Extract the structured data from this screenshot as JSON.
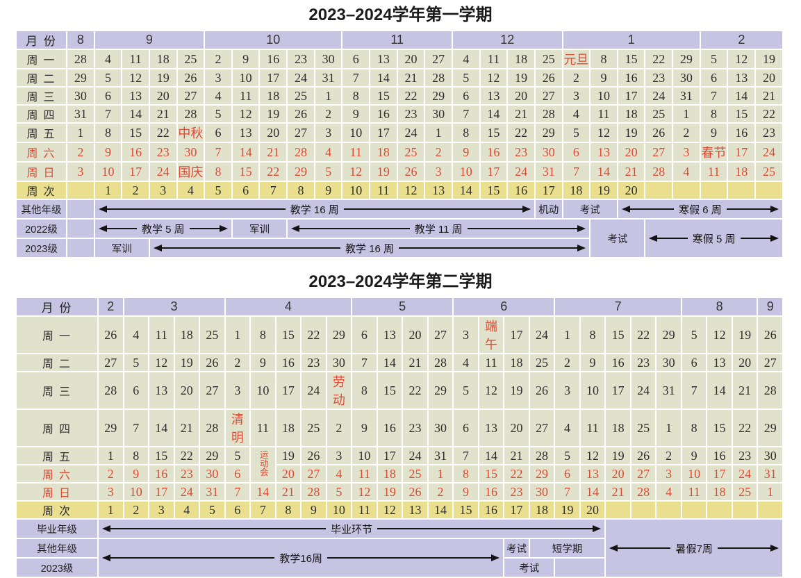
{
  "colors": {
    "band": "#c7c3e3",
    "cell": "#e1e2cc",
    "week": "#eadf8e",
    "red": "#dd4a33",
    "text": "#2e2e2e",
    "line": "#141414",
    "border": "#ffffff"
  },
  "semesters": [
    {
      "title": "2023–2024学年第一学期",
      "month_label": "月 份",
      "week_label": "周 次",
      "months": [
        {
          "label": "8",
          "span": 1
        },
        {
          "label": "9",
          "span": 4
        },
        {
          "label": "10",
          "span": 5
        },
        {
          "label": "11",
          "span": 4
        },
        {
          "label": "12",
          "span": 4
        },
        {
          "label": "1",
          "span": 5
        },
        {
          "label": "2",
          "span": 3
        }
      ],
      "day_rows": [
        {
          "label": "周 一",
          "red": false,
          "cells": [
            "28",
            "4",
            "11",
            "18",
            "25",
            "2",
            "9",
            "16",
            "23",
            "30",
            "6",
            "13",
            "20",
            "27",
            "4",
            "11",
            "18",
            "25",
            {
              "t": "元旦",
              "red": true
            },
            "8",
            "15",
            "22",
            "29",
            "5",
            "12",
            "19"
          ]
        },
        {
          "label": "周 二",
          "red": false,
          "cells": [
            "29",
            "5",
            "12",
            "19",
            "26",
            "3",
            "10",
            "17",
            "24",
            "31",
            "7",
            "14",
            "21",
            "28",
            "5",
            "12",
            "19",
            "26",
            "2",
            "9",
            "16",
            "23",
            "30",
            "6",
            "13",
            "20"
          ]
        },
        {
          "label": "周 三",
          "red": false,
          "cells": [
            "30",
            "6",
            "13",
            "20",
            "27",
            "4",
            "11",
            "18",
            "25",
            "1",
            "8",
            "15",
            "22",
            "29",
            "6",
            "13",
            "20",
            "27",
            "3",
            "10",
            "17",
            "24",
            "31",
            "7",
            "14",
            "21"
          ]
        },
        {
          "label": "周 四",
          "red": false,
          "cells": [
            "31",
            "7",
            "14",
            "21",
            "28",
            "5",
            "12",
            "19",
            "26",
            "2",
            "9",
            "16",
            "23",
            "30",
            "7",
            "14",
            "21",
            "28",
            "4",
            "11",
            "18",
            "25",
            "1",
            "8",
            "15",
            "22"
          ]
        },
        {
          "label": "周 五",
          "red": false,
          "cells": [
            "1",
            "8",
            "15",
            "22",
            {
              "t": "中秋",
              "red": true
            },
            "6",
            "13",
            "20",
            "27",
            "3",
            "10",
            "17",
            "24",
            "1",
            "8",
            "15",
            "22",
            "29",
            "5",
            "12",
            "19",
            "26",
            "2",
            "9",
            "16",
            "23"
          ]
        },
        {
          "label": "周 六",
          "red": true,
          "cells": [
            "2",
            "9",
            "16",
            "23",
            "30",
            "7",
            "14",
            "21",
            "28",
            "4",
            "11",
            "18",
            "25",
            "2",
            "9",
            "16",
            "23",
            "30",
            "6",
            "13",
            "20",
            "27",
            "3",
            {
              "t": "春节",
              "red": true
            },
            "17",
            "24"
          ]
        },
        {
          "label": "周 日",
          "red": true,
          "cells": [
            "3",
            "10",
            "17",
            "24",
            {
              "t": "国庆",
              "red": true
            },
            "8",
            "15",
            "22",
            "29",
            "5",
            "12",
            "19",
            "26",
            "3",
            "10",
            "17",
            "24",
            "31",
            "7",
            "14",
            "21",
            "28",
            "4",
            "11",
            "18",
            "25"
          ]
        }
      ],
      "week_cells": [
        "",
        "1",
        "2",
        "3",
        "4",
        "5",
        "6",
        "7",
        "8",
        "9",
        "10",
        "11",
        "12",
        "13",
        "14",
        "15",
        "16",
        "17",
        "18",
        "19",
        "20",
        "",
        "",
        "",
        "",
        ""
      ],
      "grade_rows": [
        {
          "label": "其他年级",
          "cells": [
            {
              "type": "empty",
              "span": 1
            },
            {
              "type": "arrow",
              "text": "教学 16 周",
              "span": 16
            },
            {
              "type": "text",
              "text": "机动",
              "span": 1
            },
            {
              "type": "text",
              "text": "考试",
              "span": 2
            },
            {
              "type": "arrow",
              "text": "寒假 6 周",
              "span": 6
            }
          ]
        },
        {
          "label": "2022级",
          "cells": [
            {
              "type": "empty",
              "span": 1
            },
            {
              "type": "arrow",
              "text": "教学 5 周",
              "span": 5
            },
            {
              "type": "text",
              "text": "军训",
              "span": 2
            },
            {
              "type": "arrow",
              "text": "教学 11 周",
              "span": 11
            },
            {
              "type": "text",
              "text": "考试",
              "span": 2,
              "rowspan": 2
            },
            {
              "type": "arrow",
              "text": "寒假 5 周",
              "span": 5,
              "rowspan": 2
            }
          ]
        },
        {
          "label": "2023级",
          "cells": [
            {
              "type": "empty",
              "span": 1
            },
            {
              "type": "text",
              "text": "军训",
              "span": 2
            },
            {
              "type": "arrow",
              "text": "教学 16 周",
              "span": 16
            }
          ]
        }
      ]
    },
    {
      "title": "2023–2024学年第二学期",
      "month_label": "月 份",
      "week_label": "周 次",
      "months": [
        {
          "label": "2",
          "span": 1
        },
        {
          "label": "3",
          "span": 4
        },
        {
          "label": "4",
          "span": 5
        },
        {
          "label": "5",
          "span": 4
        },
        {
          "label": "6",
          "span": 4
        },
        {
          "label": "7",
          "span": 5
        },
        {
          "label": "8",
          "span": 3
        },
        {
          "label": "9",
          "span": 1
        }
      ],
      "day_rows": [
        {
          "label": "周 一",
          "red": false,
          "cells": [
            "26",
            "4",
            "11",
            "18",
            "25",
            "1",
            "8",
            "15",
            "22",
            "29",
            "6",
            "13",
            "20",
            "27",
            "3",
            {
              "t": "端午",
              "red": true
            },
            "17",
            "24",
            "1",
            "8",
            "15",
            "22",
            "29",
            "5",
            "12",
            "19",
            "26"
          ]
        },
        {
          "label": "周 二",
          "red": false,
          "cells": [
            "27",
            "5",
            "12",
            "19",
            "26",
            "2",
            "9",
            "16",
            "23",
            "30",
            "7",
            "14",
            "21",
            "28",
            "4",
            "11",
            "18",
            "25",
            "2",
            "9",
            "16",
            "23",
            "30",
            "6",
            "13",
            "20",
            "27"
          ]
        },
        {
          "label": "周 三",
          "red": false,
          "cells": [
            "28",
            "6",
            "13",
            "20",
            "27",
            "3",
            "10",
            "17",
            "24",
            {
              "t": "劳动",
              "red": true
            },
            "8",
            "15",
            "22",
            "29",
            "5",
            "12",
            "19",
            "26",
            "3",
            "10",
            "17",
            "24",
            "31",
            "7",
            "14",
            "21",
            "28"
          ]
        },
        {
          "label": "周 四",
          "red": false,
          "cells": [
            "29",
            "7",
            "14",
            "21",
            "28",
            {
              "t": "清明",
              "red": true
            },
            "11",
            "18",
            "25",
            "2",
            "9",
            "16",
            "23",
            "30",
            "6",
            "13",
            "20",
            "27",
            "4",
            "11",
            "18",
            "25",
            "1",
            "8",
            "15",
            "22",
            "29"
          ]
        },
        {
          "label": "周 五",
          "red": false,
          "cells": [
            "1",
            "8",
            "15",
            "22",
            "29",
            "5",
            {
              "t": "运动会",
              "red": true,
              "rowspan": 2,
              "vertical": true
            },
            "19",
            "26",
            "3",
            "10",
            "17",
            "24",
            "31",
            "7",
            "14",
            "21",
            "28",
            "5",
            "12",
            "19",
            "26",
            "2",
            "9",
            "16",
            "23",
            "30"
          ]
        },
        {
          "label": "周 六",
          "red": true,
          "cells": [
            "2",
            "9",
            "16",
            "23",
            "30",
            "6",
            null,
            "20",
            "27",
            "4",
            "11",
            "18",
            "25",
            "1",
            "8",
            "15",
            "22",
            "29",
            "6",
            "13",
            "20",
            "27",
            "3",
            "10",
            "17",
            "24",
            "31"
          ]
        },
        {
          "label": "周 日",
          "red": true,
          "cells": [
            "3",
            "10",
            "17",
            "24",
            "31",
            "7",
            "14",
            "21",
            "28",
            "5",
            "12",
            "19",
            "26",
            "2",
            "9",
            "16",
            "23",
            "30",
            "7",
            "14",
            "21",
            "28",
            "4",
            "11",
            "18",
            "25",
            "1"
          ]
        }
      ],
      "week_cells": [
        "1",
        "2",
        "3",
        "4",
        "5",
        "6",
        "7",
        "8",
        "9",
        "10",
        "11",
        "12",
        "13",
        "14",
        "15",
        "16",
        "17",
        "18",
        "19",
        "20",
        "",
        "",
        "",
        "",
        "",
        "",
        ""
      ],
      "grade_rows": [
        {
          "label": "毕业年级",
          "cells": [
            {
              "type": "arrow",
              "text": "毕业环节",
              "span": 20
            },
            {
              "type": "arrow",
              "text": "暑假7周",
              "span": 7,
              "rowspan": 3
            }
          ]
        },
        {
          "label": "其他年级",
          "cells": [
            {
              "type": "arrow",
              "text": "教学16周",
              "span": 16,
              "rowspan": 2
            },
            {
              "type": "text",
              "text": "考试",
              "span": 1
            },
            {
              "type": "text",
              "text": "短学期",
              "span": 3
            }
          ]
        },
        {
          "label": "2023级",
          "cells": [
            {
              "type": "text",
              "text": "考试",
              "span": 2
            },
            {
              "type": "empty",
              "span": 2
            }
          ]
        }
      ]
    }
  ]
}
